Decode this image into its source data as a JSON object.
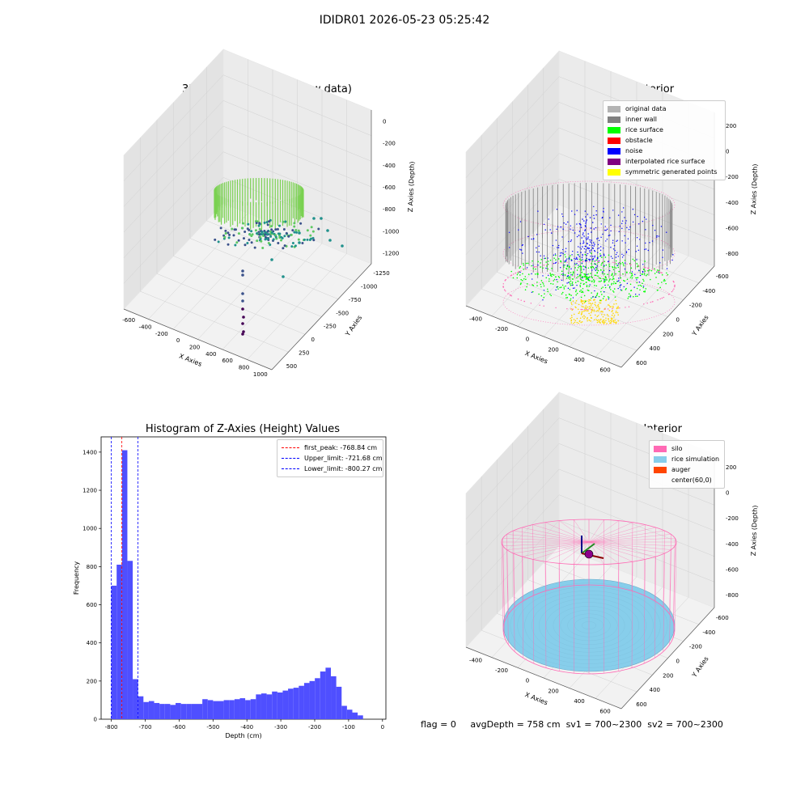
{
  "suptitle": "IDIDR01 2026-05-23 05:25:42",
  "panels": {
    "raw": {
      "title": "3D Plot of Silo Interior(row data)",
      "xlabel": "X Axies",
      "ylabel": "Y Axies",
      "zlabel": "Z Axies (Depth)",
      "xticks": [
        "-600",
        "-400",
        "-200",
        "0",
        "200",
        "400",
        "600",
        "800",
        "1000"
      ],
      "yticks": [
        "500",
        "250",
        "0",
        "-250",
        "-500",
        "-750",
        "-1000",
        "-1250"
      ],
      "zticks": [
        "0",
        "-200",
        "-400",
        "-600",
        "-800",
        "-1000",
        "-1200"
      ]
    },
    "classify": {
      "title": "3D classify of Silo Interior",
      "xlabel": "X Axies",
      "ylabel": "Y Axies",
      "zlabel": "Z Axies (Depth)",
      "xticks": [
        "-400",
        "-200",
        "0",
        "200",
        "400",
        "600"
      ],
      "yticks": [
        "600",
        "400",
        "200",
        "0",
        "-200",
        "-400",
        "-600"
      ],
      "zticks": [
        "200",
        "0",
        "-200",
        "-400",
        "-600",
        "-800"
      ],
      "legend": [
        {
          "label": "original data",
          "color": "#b3b3b3"
        },
        {
          "label": "inner wall",
          "color": "#808080"
        },
        {
          "label": "rice surface",
          "color": "#00ff00"
        },
        {
          "label": "obstacle",
          "color": "#ff0000"
        },
        {
          "label": "noise",
          "color": "#0000ff"
        },
        {
          "label": "interpolated rice surface",
          "color": "#800080"
        },
        {
          "label": "symmetric generated points",
          "color": "#ffff00"
        }
      ]
    },
    "hist": {
      "title": "Histogram of Z-Axies (Height) Values",
      "xlabel": "Depth (cm)",
      "ylabel": "Frequency",
      "legend": [
        {
          "label": "first_peak: -768.84 cm",
          "color": "#ff0000"
        },
        {
          "label": "Upper_limit: -721.68 cm",
          "color": "#0000ff"
        },
        {
          "label": "Lower_limit: -800.27 cm",
          "color": "#0000ff"
        }
      ]
    },
    "sim": {
      "title": "3D simulation of Silo Interior",
      "xlabel": "X Axies",
      "ylabel": "Y Axies",
      "zlabel": "Z Axies (Depth)",
      "xticks": [
        "-400",
        "-200",
        "0",
        "200",
        "400",
        "600"
      ],
      "yticks": [
        "600",
        "400",
        "200",
        "0",
        "-200",
        "-400",
        "-600"
      ],
      "zticks": [
        "200",
        "0",
        "-200",
        "-400",
        "-600",
        "-800"
      ],
      "legend": [
        {
          "label": "silo",
          "color": "#ff69b4"
        },
        {
          "label": "rice simulation",
          "color": "#87ceeb"
        },
        {
          "label": "auger",
          "color": "#ff4500"
        },
        {
          "label": "center(60,0)",
          "color": "transparent"
        }
      ]
    }
  },
  "footer": {
    "flag": "flag = 0",
    "avg": "avgDepth = 758 cm",
    "sv1": "sv1 = 700~2300",
    "sv2": "sv2 = 700~2300"
  },
  "chart_data": [
    {
      "type": "scatter",
      "title": "3D Plot of Silo Interior(row data)",
      "xlabel": "X Axies",
      "ylabel": "Y Axies",
      "zlabel": "Z Axies (Depth)",
      "xlim": [
        -600,
        1000
      ],
      "ylim": [
        -1250,
        500
      ],
      "zlim": [
        -1250,
        0
      ],
      "colormap": "viridis"
    },
    {
      "type": "scatter",
      "title": "3D classify of Silo Interior",
      "xlim": [
        -600,
        600
      ],
      "ylim": [
        -600,
        600
      ],
      "zlim": [
        -800,
        200
      ],
      "series": [
        "original data",
        "inner wall",
        "rice surface",
        "obstacle",
        "noise",
        "interpolated rice surface",
        "symmetric generated points"
      ]
    },
    {
      "type": "bar",
      "title": "Histogram of Z-Axies (Height) Values",
      "xlabel": "Depth (cm)",
      "ylabel": "Frequency",
      "xlim": [
        -830,
        10
      ],
      "ylim": [
        0,
        1480
      ],
      "xticks": [
        -800,
        -700,
        -600,
        -500,
        -400,
        -300,
        -200,
        -100,
        0
      ],
      "yticks": [
        0,
        200,
        400,
        600,
        800,
        1000,
        1200,
        1400
      ],
      "bin_start": -800,
      "bin_width": 15.8,
      "values": [
        700,
        810,
        1410,
        830,
        210,
        120,
        90,
        95,
        85,
        80,
        80,
        75,
        85,
        80,
        80,
        80,
        80,
        105,
        100,
        95,
        95,
        100,
        100,
        105,
        110,
        100,
        105,
        130,
        135,
        130,
        145,
        140,
        150,
        160,
        165,
        175,
        190,
        200,
        215,
        250,
        270,
        225,
        170,
        70,
        50,
        35,
        20
      ],
      "vlines": [
        {
          "label": "first_peak: -768.84 cm",
          "x": -768.84,
          "color": "#ff0000"
        },
        {
          "label": "Upper_limit: -721.68 cm",
          "x": -721.68,
          "color": "#0000ff"
        },
        {
          "label": "Lower_limit: -800.27 cm",
          "x": -800.27,
          "color": "#0000ff"
        }
      ]
    },
    {
      "type": "scatter",
      "title": "3D simulation of Silo Interior",
      "xlim": [
        -600,
        600
      ],
      "ylim": [
        -600,
        600
      ],
      "zlim": [
        -800,
        200
      ],
      "series": [
        "silo",
        "rice simulation",
        "auger",
        "center(60,0)"
      ]
    }
  ]
}
